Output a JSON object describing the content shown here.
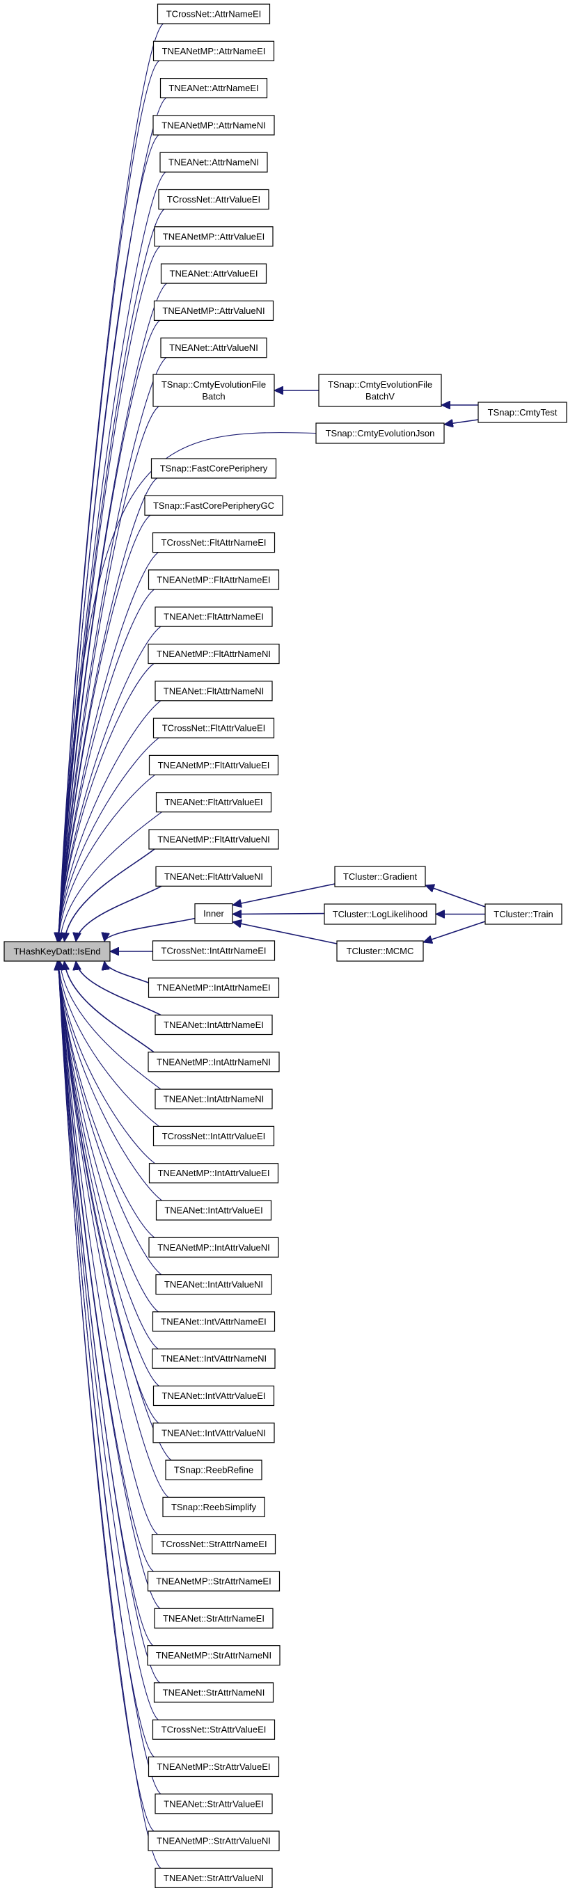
{
  "graph": {
    "root": "THashKeyDatI::IsEnd",
    "edge_color": "#191970",
    "root_fill": "#bfbfbf",
    "callers": [
      "TCrossNet::AttrNameEI",
      "TNEANetMP::AttrNameEI",
      "TNEANet::AttrNameEI",
      "TNEANetMP::AttrNameNI",
      "TNEANet::AttrNameNI",
      "TCrossNet::AttrValueEI",
      "TNEANetMP::AttrValueEI",
      "TNEANet::AttrValueEI",
      "TNEANetMP::AttrValueNI",
      "TNEANet::AttrValueNI",
      [
        "TSnap::CmtyEvolutionFile",
        "Batch"
      ],
      "TSnap::CmtyEvolutionJson",
      "TSnap::FastCorePeriphery",
      "TSnap::FastCorePeripheryGC",
      "TCrossNet::FltAttrNameEI",
      "TNEANetMP::FltAttrNameEI",
      "TNEANet::FltAttrNameEI",
      "TNEANetMP::FltAttrNameNI",
      "TNEANet::FltAttrNameNI",
      "TCrossNet::FltAttrValueEI",
      "TNEANetMP::FltAttrValueEI",
      "TNEANet::FltAttrValueEI",
      "TNEANetMP::FltAttrValueNI",
      "TNEANet::FltAttrValueNI",
      "Inner",
      "TCrossNet::IntAttrNameEI",
      "TNEANetMP::IntAttrNameEI",
      "TNEANet::IntAttrNameEI",
      "TNEANetMP::IntAttrNameNI",
      "TNEANet::IntAttrNameNI",
      "TCrossNet::IntAttrValueEI",
      "TNEANetMP::IntAttrValueEI",
      "TNEANet::IntAttrValueEI",
      "TNEANetMP::IntAttrValueNI",
      "TNEANet::IntAttrValueNI",
      "TNEANet::IntVAttrNameEI",
      "TNEANet::IntVAttrNameNI",
      "TNEANet::IntVAttrValueEI",
      "TNEANet::IntVAttrValueNI",
      "TSnap::ReebRefine",
      "TSnap::ReebSimplify",
      "TCrossNet::StrAttrNameEI",
      "TNEANetMP::StrAttrNameEI",
      "TNEANet::StrAttrNameEI",
      "TNEANetMP::StrAttrNameNI",
      "TNEANet::StrAttrNameNI",
      "TCrossNet::StrAttrValueEI",
      "TNEANetMP::StrAttrValueEI",
      "TNEANet::StrAttrValueEI",
      "TNEANetMP::StrAttrValueNI",
      "TNEANet::StrAttrValueNI"
    ],
    "upstream_nodes": [
      [
        "TSnap::CmtyEvolutionFile",
        "BatchV"
      ],
      "TSnap::CmtyTest",
      "TCluster::Gradient",
      "TCluster::LogLikelihood",
      "TCluster::MCMC",
      "TCluster::Train"
    ],
    "upstream_edges": [
      {
        "from": "TSnap::CmtyEvolutionFile BatchV",
        "to": "TSnap::CmtyEvolutionFile Batch"
      },
      {
        "from": "TSnap::CmtyTest",
        "to": "TSnap::CmtyEvolutionFile BatchV"
      },
      {
        "from": "TSnap::CmtyTest",
        "to": "TSnap::CmtyEvolutionJson"
      },
      {
        "from": "TCluster::Gradient",
        "to": "Inner"
      },
      {
        "from": "TCluster::LogLikelihood",
        "to": "Inner"
      },
      {
        "from": "TCluster::MCMC",
        "to": "Inner"
      },
      {
        "from": "TCluster::Train",
        "to": "TCluster::Gradient"
      },
      {
        "from": "TCluster::Train",
        "to": "TCluster::LogLikelihood"
      },
      {
        "from": "TCluster::Train",
        "to": "TCluster::MCMC"
      }
    ]
  }
}
